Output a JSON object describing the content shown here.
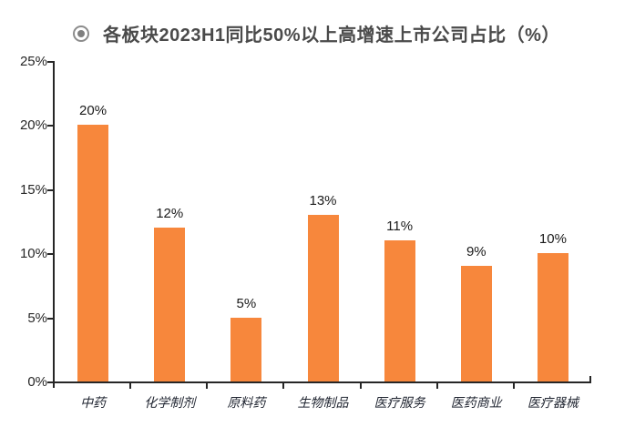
{
  "header": {
    "bullet_icon": "target-circle-icon",
    "title": "各板块2023H1同比50%以上高增速上市公司占比（%）"
  },
  "chart_data": {
    "type": "bar",
    "title": "各板块2023H1同比50%以上高增速上市公司占比（%）",
    "categories": [
      "中药",
      "化学制剂",
      "原料药",
      "生物制品",
      "医疗服务",
      "医药商业",
      "医疗器械"
    ],
    "values": [
      20,
      12,
      5,
      13,
      11,
      9,
      10
    ],
    "value_labels": [
      "20%",
      "12%",
      "5%",
      "13%",
      "11%",
      "9%",
      "10%"
    ],
    "xlabel": "",
    "ylabel": "",
    "ylim": [
      0,
      25
    ],
    "yticks": [
      0,
      5,
      10,
      15,
      20,
      25
    ],
    "ytick_labels": [
      "0%",
      "5%",
      "10%",
      "15%",
      "20%",
      "25%"
    ],
    "grid": false,
    "legend": "none",
    "colors": {
      "bar": "#f7873c",
      "axis": "#262626",
      "title_text": "#4a4a4a",
      "tick_text": "#262626",
      "value_text": "#1a1a1a",
      "background": "#ffffff"
    }
  }
}
